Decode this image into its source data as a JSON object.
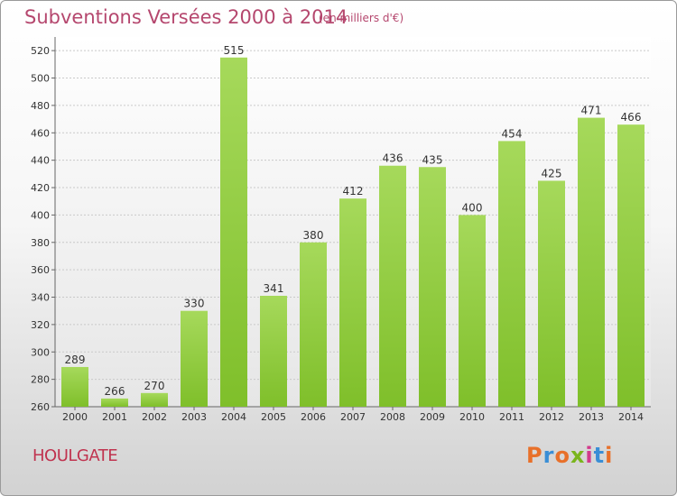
{
  "chart_data": {
    "type": "bar",
    "title": "Subventions Versées 2000 à 2014",
    "subtitle": "(en milliers d'€)",
    "categories": [
      "2000",
      "2001",
      "2002",
      "2003",
      "2004",
      "2005",
      "2006",
      "2007",
      "2008",
      "2009",
      "2010",
      "2011",
      "2012",
      "2013",
      "2014"
    ],
    "values": [
      289,
      266,
      270,
      330,
      515,
      341,
      380,
      412,
      436,
      435,
      400,
      454,
      425,
      471,
      466
    ],
    "ylim": [
      260,
      530
    ],
    "yticks": [
      260,
      280,
      300,
      320,
      340,
      360,
      380,
      400,
      420,
      440,
      460,
      480,
      500,
      520
    ],
    "grid": true,
    "bar_color": "#7fbf2a",
    "bar_color_light": "#a6d95b"
  },
  "location": "HOULGATE",
  "logo": {
    "text": "Proxiti",
    "colors": [
      "#e8702a",
      "#3a8ed6",
      "#e8702a",
      "#7ab51d",
      "#d23a8c",
      "#3a8ed6",
      "#e8702a"
    ]
  },
  "colors": {
    "title": "#b5476e",
    "location": "#c0334f"
  }
}
